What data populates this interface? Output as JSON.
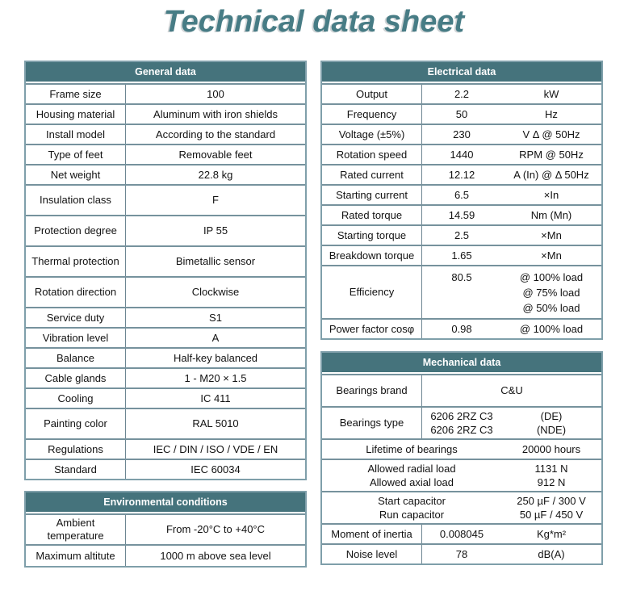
{
  "title": "Technical data sheet",
  "colors": {
    "accent_header_bg": "#45737c",
    "title_text": "#477c85",
    "header_text": "#ffffff",
    "outer_border": "#7f9faa",
    "inner_border": "#76929d",
    "body_text": "#121212"
  },
  "tables": {
    "general": {
      "header": "General data",
      "rows": [
        {
          "label": "Frame size",
          "value": "100"
        },
        {
          "label": "Housing material",
          "value": "Aluminum with iron shields"
        },
        {
          "label": "Install model",
          "value": "According to the standard"
        },
        {
          "label": "Type of feet",
          "value": "Removable feet"
        },
        {
          "label": "Net weight",
          "value": "22.8 kg"
        },
        {
          "label": "Insulation class",
          "value": "F"
        },
        {
          "label": "Protection degree",
          "value": "IP 55"
        },
        {
          "label": "Thermal protection",
          "value": "Bimetallic sensor"
        },
        {
          "label": "Rotation direction",
          "value": "Clockwise"
        },
        {
          "label": "Service duty",
          "value": "S1"
        },
        {
          "label": "Vibration level",
          "value": "A"
        },
        {
          "label": "Balance",
          "value": "Half-key balanced"
        },
        {
          "label": "Cable glands",
          "value": "1 - M20 × 1.5"
        },
        {
          "label": "Cooling",
          "value": "IC 411"
        },
        {
          "label": "Painting color",
          "value": "RAL 5010"
        },
        {
          "label": "Regulations",
          "value": "IEC / DIN / ISO / VDE / EN"
        },
        {
          "label": "Standard",
          "value": "IEC 60034"
        }
      ]
    },
    "environmental": {
      "header": "Environmental conditions",
      "rows": [
        {
          "label": "Ambient temperature",
          "value": "From -20°C to +40°C"
        },
        {
          "label": "Maximum altitute",
          "value": "1000 m above sea level"
        }
      ]
    },
    "electrical": {
      "header": "Electrical data",
      "rows": [
        {
          "label": "Output",
          "value": "2.2",
          "unit": "kW"
        },
        {
          "label": "Frequency",
          "value": "50",
          "unit": "Hz"
        },
        {
          "label": "Voltage (±5%)",
          "value": "230",
          "unit": "V Δ @ 50Hz"
        },
        {
          "label": "Rotation speed",
          "value": "1440",
          "unit": "RPM @ 50Hz"
        },
        {
          "label": "Rated current",
          "value": "12.12",
          "unit": "A (In) @ Δ 50Hz"
        },
        {
          "label": "Starting current",
          "value": "6.5",
          "unit": "×In"
        },
        {
          "label": "Rated torque",
          "value": "14.59",
          "unit": "Nm (Mn)"
        },
        {
          "label": "Starting torque",
          "value": "2.5",
          "unit": "×Mn"
        },
        {
          "label": "Breakdown torque",
          "value": "1.65",
          "unit": "×Mn"
        },
        {
          "label": "Efficiency",
          "value": "80.5",
          "unit_lines": [
            "@ 100% load",
            "@ 75% load",
            "@ 50% load"
          ]
        },
        {
          "label": "Power factor cosφ",
          "value": "0.98",
          "unit": "@ 100% load"
        }
      ]
    },
    "mechanical": {
      "header": "Mechanical data",
      "rows": [
        {
          "label": "Bearings brand",
          "value": "C&U"
        },
        {
          "label": "Bearings type",
          "value_lines": [
            "6206 2RZ C3",
            "6206 2RZ C3"
          ],
          "unit_lines": [
            "(DE)",
            "(NDE)"
          ]
        },
        {
          "label": "Lifetime of bearings",
          "value": "20000 hours"
        },
        {
          "label_lines": [
            "Allowed radial load",
            "Allowed axial load"
          ],
          "value_lines": [
            "1131 N",
            "912 N"
          ]
        },
        {
          "label_lines": [
            "Start capacitor",
            "Run capacitor"
          ],
          "value_lines": [
            "250 µF / 300 V",
            "50 µF / 450 V"
          ]
        },
        {
          "label": "Moment of inertia",
          "value": "0.008045",
          "unit": "Kg*m²"
        },
        {
          "label": "Noise level",
          "value": "78",
          "unit": "dB(A)"
        }
      ]
    }
  }
}
